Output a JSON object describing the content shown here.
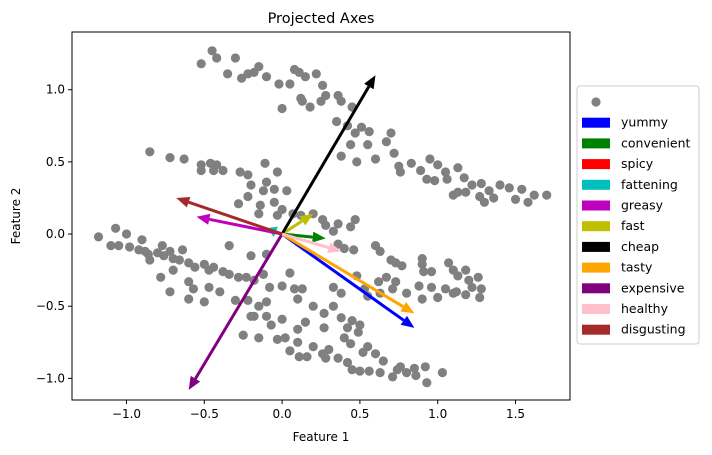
{
  "chart_data": {
    "type": "scatter",
    "title": "Projected Axes",
    "xlabel": "Feature 1",
    "ylabel": "Feature 2",
    "xlim": [
      -1.35,
      1.85
    ],
    "ylim": [
      -1.15,
      1.4
    ],
    "xticks": [
      -1.0,
      -0.5,
      0.0,
      0.5,
      1.0,
      1.5
    ],
    "yticks": [
      -1.0,
      -0.5,
      0.0,
      0.5,
      1.0
    ],
    "xtick_labels": [
      "−1.0",
      "−0.5",
      "0.0",
      "0.5",
      "1.0",
      "1.5"
    ],
    "ytick_labels": [
      "−1.0",
      "−0.5",
      "0.0",
      "0.5",
      "1.0"
    ],
    "grid": false,
    "legend_position": "center-right, outside plot",
    "point_color": "#808080",
    "points_legend_label": "",
    "points": [
      [
        -0.45,
        1.27
      ],
      [
        -0.52,
        1.18
      ],
      [
        -0.42,
        1.22
      ],
      [
        -0.3,
        1.22
      ],
      [
        -0.35,
        1.11
      ],
      [
        -0.26,
        1.08
      ],
      [
        -0.22,
        1.11
      ],
      [
        -0.18,
        1.12
      ],
      [
        -0.15,
        1.16
      ],
      [
        -0.1,
        1.09
      ],
      [
        -0.02,
        1.04
      ],
      [
        0.05,
        1.04
      ],
      [
        0.08,
        1.14
      ],
      [
        0.11,
        1.12
      ],
      [
        0.15,
        1.09
      ],
      [
        0.22,
        1.11
      ],
      [
        0.26,
        1.03
      ],
      [
        0.25,
        0.92
      ],
      [
        0.28,
        0.96
      ],
      [
        0.36,
        0.96
      ],
      [
        0.35,
        0.78
      ],
      [
        0.42,
        0.75
      ],
      [
        0.45,
        0.88
      ],
      [
        0.47,
        0.7
      ],
      [
        0.38,
        0.92
      ],
      [
        0.51,
        0.74
      ],
      [
        0.56,
        0.71
      ],
      [
        0.44,
        0.62
      ],
      [
        0.55,
        0.62
      ],
      [
        0.67,
        0.64
      ],
      [
        0.7,
        0.7
      ],
      [
        0.72,
        0.56
      ],
      [
        0.6,
        0.52
      ],
      [
        0.48,
        0.5
      ],
      [
        0.38,
        0.54
      ],
      [
        0.75,
        0.47
      ],
      [
        0.83,
        0.49
      ],
      [
        0.76,
        0.43
      ],
      [
        0.89,
        0.44
      ],
      [
        0.95,
        0.52
      ],
      [
        1.0,
        0.48
      ],
      [
        0.93,
        0.38
      ],
      [
        0.98,
        0.37
      ],
      [
        1.06,
        0.38
      ],
      [
        1.05,
        0.43
      ],
      [
        1.13,
        0.46
      ],
      [
        1.17,
        0.39
      ],
      [
        1.22,
        0.34
      ],
      [
        1.13,
        0.29
      ],
      [
        1.18,
        0.29
      ],
      [
        1.28,
        0.35
      ],
      [
        1.27,
        0.26
      ],
      [
        1.33,
        0.3
      ],
      [
        1.4,
        0.34
      ],
      [
        1.46,
        0.32
      ],
      [
        1.54,
        0.31
      ],
      [
        1.5,
        0.24
      ],
      [
        1.58,
        0.22
      ],
      [
        1.7,
        0.27
      ],
      [
        1.62,
        0.27
      ],
      [
        1.36,
        0.25
      ],
      [
        1.3,
        0.22
      ],
      [
        1.1,
        0.27
      ],
      [
        0.0,
        0.87
      ],
      [
        0.12,
        0.94
      ],
      [
        0.18,
        0.88
      ],
      [
        0.13,
        0.92
      ],
      [
        -0.85,
        0.57
      ],
      [
        -0.72,
        0.53
      ],
      [
        -0.63,
        0.52
      ],
      [
        -0.52,
        0.48
      ],
      [
        -0.46,
        0.49
      ],
      [
        -0.42,
        0.48
      ],
      [
        -0.52,
        0.44
      ],
      [
        -0.44,
        0.44
      ],
      [
        -0.38,
        0.44
      ],
      [
        -0.27,
        0.43
      ],
      [
        -0.22,
        0.41
      ],
      [
        -0.11,
        0.49
      ],
      [
        -0.05,
        0.31
      ],
      [
        -0.03,
        0.43
      ],
      [
        -0.1,
        0.36
      ],
      [
        -0.2,
        0.34
      ],
      [
        -0.12,
        0.3
      ],
      [
        -0.22,
        0.26
      ],
      [
        -0.14,
        0.2
      ],
      [
        -0.28,
        0.21
      ],
      [
        0.03,
        0.3
      ],
      [
        -0.05,
        0.22
      ],
      [
        0.0,
        0.17
      ],
      [
        -0.15,
        0.14
      ],
      [
        0.07,
        0.14
      ],
      [
        -0.03,
        0.13
      ],
      [
        0.12,
        0.13
      ],
      [
        0.2,
        0.14
      ],
      [
        0.26,
        0.1
      ],
      [
        0.28,
        0.06
      ],
      [
        0.36,
        0.07
      ],
      [
        0.33,
        0.02
      ],
      [
        0.44,
        0.05
      ],
      [
        0.47,
        0.1
      ],
      [
        0.36,
        -0.07
      ],
      [
        0.4,
        -0.1
      ],
      [
        0.6,
        -0.08
      ],
      [
        0.63,
        -0.12
      ],
      [
        0.46,
        -0.11
      ],
      [
        0.7,
        -0.18
      ],
      [
        0.73,
        -0.2
      ],
      [
        0.77,
        -0.22
      ],
      [
        0.9,
        -0.17
      ],
      [
        0.9,
        -0.21
      ],
      [
        0.91,
        -0.26
      ],
      [
        1.07,
        -0.2
      ],
      [
        1.1,
        -0.25
      ],
      [
        0.96,
        -0.26
      ],
      [
        1.18,
        -0.25
      ],
      [
        1.13,
        -0.29
      ],
      [
        1.2,
        -0.32
      ],
      [
        1.26,
        -0.3
      ],
      [
        1.22,
        -0.37
      ],
      [
        1.28,
        -0.38
      ],
      [
        1.05,
        -0.38
      ],
      [
        1.12,
        -0.4
      ],
      [
        0.96,
        -0.37
      ],
      [
        0.88,
        -0.36
      ],
      [
        0.73,
        -0.33
      ],
      [
        0.67,
        -0.3
      ],
      [
        0.48,
        -0.29
      ],
      [
        0.53,
        -0.38
      ],
      [
        0.62,
        -0.33
      ],
      [
        0.63,
        -0.41
      ],
      [
        0.71,
        -0.38
      ],
      [
        0.8,
        -0.41
      ],
      [
        0.9,
        -0.45
      ],
      [
        1.0,
        -0.44
      ],
      [
        1.1,
        -0.41
      ],
      [
        1.18,
        -0.42
      ],
      [
        1.27,
        -0.44
      ],
      [
        0.55,
        -0.43
      ],
      [
        -0.34,
        -0.08
      ],
      [
        -0.2,
        -0.15
      ],
      [
        -0.1,
        -0.14
      ],
      [
        -1.18,
        -0.02
      ],
      [
        -1.1,
        -0.08
      ],
      [
        -1.05,
        -0.08
      ],
      [
        -0.98,
        -0.09
      ],
      [
        -0.92,
        -0.11
      ],
      [
        -0.88,
        -0.12
      ],
      [
        -0.86,
        -0.14
      ],
      [
        -0.8,
        -0.13
      ],
      [
        -0.76,
        -0.15
      ],
      [
        -0.7,
        -0.17
      ],
      [
        -0.66,
        -0.18
      ],
      [
        -0.6,
        -0.2
      ],
      [
        -0.56,
        -0.23
      ],
      [
        -0.5,
        -0.21
      ],
      [
        -0.47,
        -0.25
      ],
      [
        -0.44,
        -0.23
      ],
      [
        -0.38,
        -0.26
      ],
      [
        -0.34,
        -0.28
      ],
      [
        -0.28,
        -0.3
      ],
      [
        -0.23,
        -0.3
      ],
      [
        -0.18,
        -0.32
      ],
      [
        -0.12,
        -0.28
      ],
      [
        -0.08,
        -0.37
      ],
      [
        0.0,
        -0.36
      ],
      [
        0.08,
        -0.38
      ],
      [
        0.13,
        -0.38
      ],
      [
        0.1,
        -0.45
      ],
      [
        0.2,
        -0.5
      ],
      [
        0.27,
        -0.55
      ],
      [
        0.33,
        -0.5
      ],
      [
        0.38,
        -0.58
      ],
      [
        0.45,
        -0.6
      ],
      [
        0.5,
        -0.63
      ],
      [
        0.33,
        -0.37
      ],
      [
        0.38,
        -0.41
      ],
      [
        0.05,
        -0.27
      ],
      [
        -1.07,
        0.04
      ],
      [
        -1.0,
        0.0
      ],
      [
        -0.9,
        -0.04
      ],
      [
        -0.77,
        -0.08
      ],
      [
        -0.72,
        -0.12
      ],
      [
        -0.64,
        -0.11
      ],
      [
        -0.85,
        -0.18
      ],
      [
        -0.7,
        -0.25
      ],
      [
        -0.72,
        -0.4
      ],
      [
        -0.78,
        -0.3
      ],
      [
        -0.6,
        -0.33
      ],
      [
        -0.57,
        -0.38
      ],
      [
        -0.6,
        -0.45
      ],
      [
        -0.5,
        -0.47
      ],
      [
        -0.47,
        -0.37
      ],
      [
        -0.4,
        -0.4
      ],
      [
        -0.3,
        -0.46
      ],
      [
        -0.22,
        -0.46
      ],
      [
        -0.15,
        -0.5
      ],
      [
        -0.2,
        -0.57
      ],
      [
        -0.1,
        -0.57
      ],
      [
        -0.07,
        -0.63
      ],
      [
        -0.1,
        -0.47
      ],
      [
        -0.25,
        -0.7
      ],
      [
        -0.15,
        -0.72
      ],
      [
        -0.03,
        -0.73
      ],
      [
        0.02,
        -0.72
      ],
      [
        0.1,
        -0.75
      ],
      [
        0.05,
        -0.81
      ],
      [
        0.11,
        -0.85
      ],
      [
        0.16,
        -0.85
      ],
      [
        0.2,
        -0.78
      ],
      [
        0.26,
        -0.83
      ],
      [
        0.3,
        -0.8
      ],
      [
        0.28,
        -0.86
      ],
      [
        0.36,
        -0.86
      ],
      [
        0.42,
        -0.89
      ],
      [
        0.45,
        -0.94
      ],
      [
        0.5,
        -0.95
      ],
      [
        0.56,
        -0.95
      ],
      [
        0.63,
        -0.96
      ],
      [
        0.71,
        -0.99
      ],
      [
        0.74,
        -0.94
      ],
      [
        0.8,
        -0.96
      ],
      [
        0.86,
        -0.98
      ],
      [
        0.93,
        -1.03
      ],
      [
        0.76,
        -0.92
      ],
      [
        0.65,
        -0.88
      ],
      [
        0.52,
        -0.82
      ],
      [
        0.44,
        -0.76
      ],
      [
        0.42,
        -0.65
      ],
      [
        0.4,
        -0.72
      ],
      [
        0.49,
        -0.68
      ],
      [
        -0.18,
        -0.57
      ],
      [
        0.0,
        -0.59
      ],
      [
        0.1,
        -0.66
      ],
      [
        0.15,
        -0.61
      ],
      [
        0.27,
        -0.65
      ],
      [
        0.55,
        -0.78
      ],
      [
        0.6,
        -0.83
      ],
      [
        0.85,
        -0.93
      ],
      [
        0.92,
        -0.92
      ],
      [
        1.03,
        -0.96
      ]
    ],
    "series": [
      {
        "name": "yummy",
        "color": "#0000ff",
        "x": 0.85,
        "y": -0.65
      },
      {
        "name": "convenient",
        "color": "#008000",
        "x": 0.28,
        "y": -0.03
      },
      {
        "name": "spicy",
        "color": "#ff0000",
        "x": 0.0,
        "y": 0.0
      },
      {
        "name": "fattening",
        "color": "#00bfbf",
        "x": -0.1,
        "y": 0.04
      },
      {
        "name": "greasy",
        "color": "#bf00bf",
        "x": -0.55,
        "y": 0.12
      },
      {
        "name": "fast",
        "color": "#bfbf00",
        "x": 0.2,
        "y": 0.14
      },
      {
        "name": "cheap",
        "color": "#000000",
        "x": 0.6,
        "y": 1.1
      },
      {
        "name": "tasty",
        "color": "#ffa500",
        "x": 0.85,
        "y": -0.55
      },
      {
        "name": "expensive",
        "color": "#800080",
        "x": -0.6,
        "y": -1.08
      },
      {
        "name": "healthy",
        "color": "#ffc0cb",
        "x": 0.38,
        "y": -0.12
      },
      {
        "name": "disgusting",
        "color": "#a52a2a",
        "x": -0.68,
        "y": 0.25
      }
    ]
  }
}
